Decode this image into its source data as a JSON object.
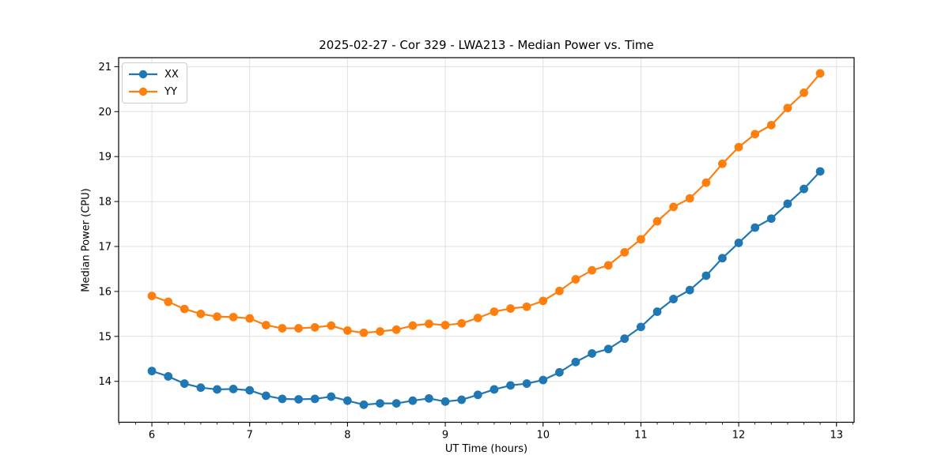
{
  "chart_data": {
    "type": "line",
    "title": "2025-02-27 - Cor 329 - LWA213 - Median Power vs. Time",
    "xlabel": "UT Time (hours)",
    "ylabel": "Median Power (CPU)",
    "xlim": [
      5.66,
      13.18
    ],
    "ylim": [
      13.09,
      21.2
    ],
    "xticks": [
      6,
      7,
      8,
      9,
      10,
      11,
      12,
      13
    ],
    "yticks": [
      14,
      15,
      16,
      17,
      18,
      19,
      20,
      21
    ],
    "x_minor_step": 0.166667,
    "grid": true,
    "legend_position": "upper-left",
    "background_color": "#ffffff",
    "grid_color": "#e0e0e0",
    "x": [
      6.0,
      6.167,
      6.333,
      6.5,
      6.667,
      6.833,
      7.0,
      7.167,
      7.333,
      7.5,
      7.667,
      7.833,
      8.0,
      8.167,
      8.333,
      8.5,
      8.667,
      8.833,
      9.0,
      9.167,
      9.333,
      9.5,
      9.667,
      9.833,
      10.0,
      10.167,
      10.333,
      10.5,
      10.667,
      10.833,
      11.0,
      11.167,
      11.333,
      11.5,
      11.667,
      11.833,
      12.0,
      12.167,
      12.333,
      12.5,
      12.667,
      12.833
    ],
    "series": [
      {
        "name": "XX",
        "color": "#1f77b4",
        "values": [
          14.23,
          14.11,
          13.95,
          13.86,
          13.82,
          13.83,
          13.8,
          13.68,
          13.61,
          13.6,
          13.61,
          13.66,
          13.57,
          13.48,
          13.51,
          13.51,
          13.57,
          13.62,
          13.55,
          13.59,
          13.7,
          13.82,
          13.91,
          13.95,
          14.03,
          14.2,
          14.43,
          14.62,
          14.72,
          14.95,
          15.21,
          15.55,
          15.83,
          16.03,
          16.35,
          16.74,
          17.08,
          17.42,
          17.62,
          17.95,
          18.28,
          18.67
        ]
      },
      {
        "name": "YY",
        "color": "#ff7f0e",
        "values": [
          15.9,
          15.77,
          15.61,
          15.5,
          15.44,
          15.43,
          15.4,
          15.25,
          15.18,
          15.18,
          15.2,
          15.24,
          15.13,
          15.08,
          15.11,
          15.15,
          15.24,
          15.28,
          15.25,
          15.29,
          15.41,
          15.55,
          15.62,
          15.66,
          15.79,
          16.01,
          16.27,
          16.47,
          16.58,
          16.87,
          17.16,
          17.56,
          17.88,
          18.07,
          18.42,
          18.84,
          19.21,
          19.5,
          19.7,
          20.08,
          20.42,
          20.85
        ]
      }
    ]
  }
}
